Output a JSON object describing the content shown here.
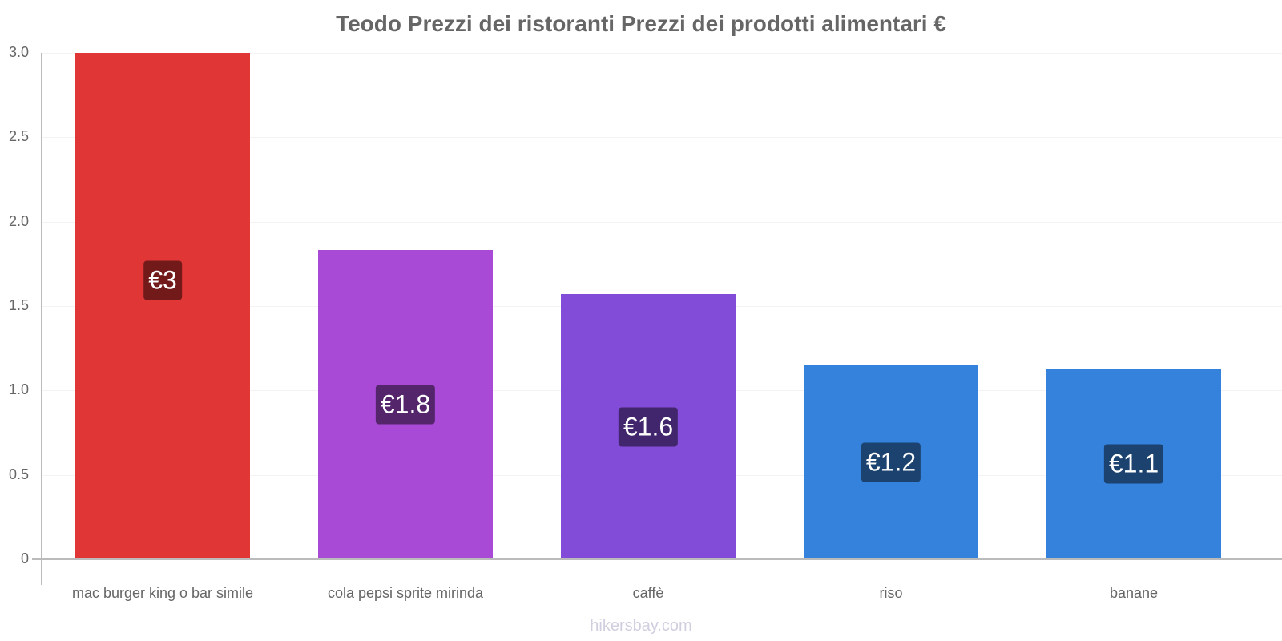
{
  "chart_data": {
    "type": "bar",
    "title": "Teodo Prezzi dei ristoranti Prezzi dei prodotti alimentari €",
    "xlabel": "",
    "ylabel": "",
    "ylim": [
      0,
      3.0
    ],
    "yticks": [
      "0",
      "0.5",
      "1.0",
      "1.5",
      "2.0",
      "2.5",
      "3.0"
    ],
    "grid": true,
    "categories": [
      "mac burger king o bar simile",
      "cola pepsi sprite mirinda",
      "caffè",
      "riso",
      "banane"
    ],
    "values": [
      3.0,
      1.83,
      1.57,
      1.15,
      1.13
    ],
    "data_labels": [
      "€3",
      "€1.8",
      "€1.6",
      "€1.2",
      "€1.1"
    ],
    "colors": [
      "#e03636",
      "#a84ad6",
      "#824bd8",
      "#3582dd",
      "#3582dd"
    ],
    "label_bg_colors": [
      "#721a1a",
      "#55256c",
      "#42266d",
      "#1c426f",
      "#1c426f"
    ]
  },
  "watermark": "hikersbay.com"
}
